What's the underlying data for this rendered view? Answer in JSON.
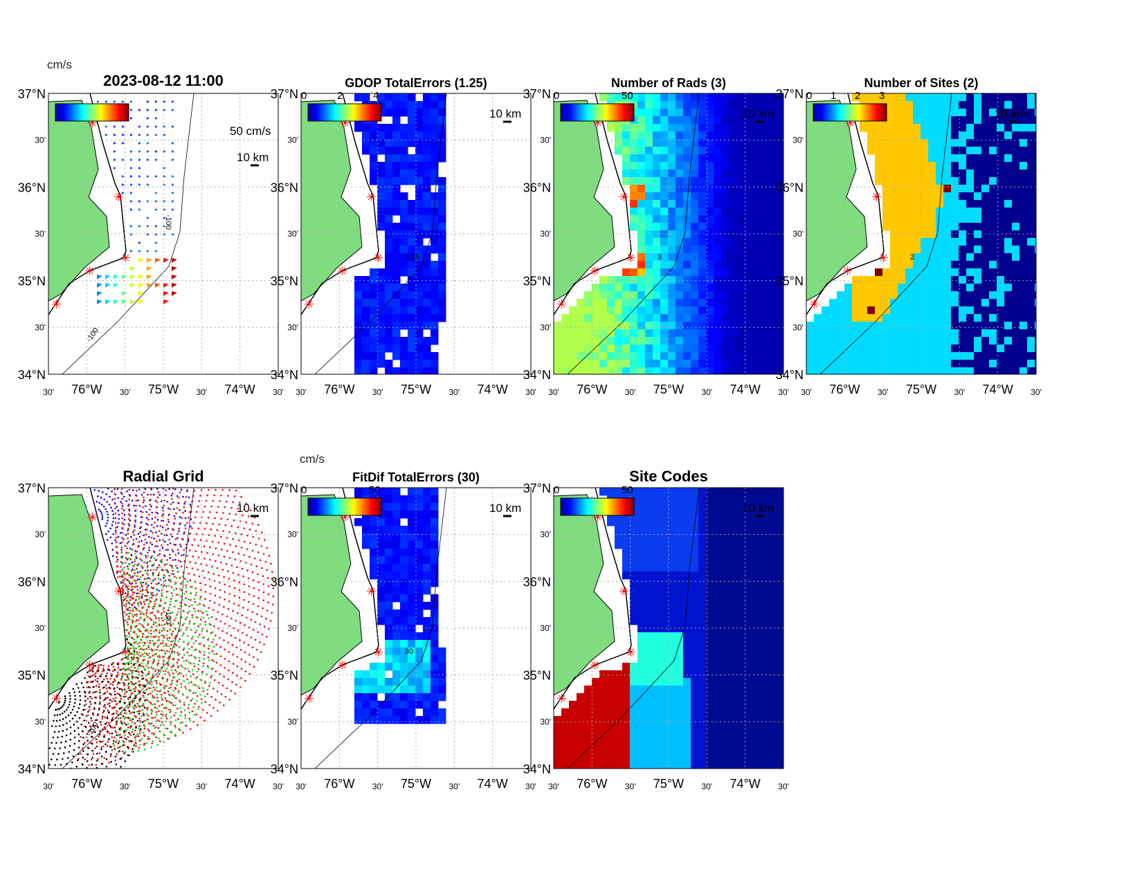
{
  "chart_data": {
    "type": "heatmap",
    "timestamp_title": "2023-08-12 11:00",
    "lat_ticks": [
      "37°N",
      "30'",
      "36°N",
      "30'",
      "35°N",
      "30'",
      "34°N"
    ],
    "lon_ticks": [
      "30'",
      "76°W",
      "30'",
      "75°W",
      "30'",
      "74°W",
      "30'"
    ],
    "lat_range": [
      34,
      37
    ],
    "lon_range": [
      -76.5,
      -73.5
    ],
    "contour_label": "-100",
    "panels": [
      {
        "id": "currents",
        "title": "2023-08-12 11:00",
        "cbar_unit": "cm/s",
        "cbar_ticks": [],
        "scale_label": "10 km",
        "arrow_scale_label": "50 cm/s",
        "field": "arrows"
      },
      {
        "id": "gdop",
        "title": "GDOP TotalErrors (1.25)",
        "cbar_unit": "",
        "cbar_ticks": [
          "0",
          "2",
          "4"
        ],
        "scale_label": "10 km",
        "contour_label": "1.25",
        "field": "gdop"
      },
      {
        "id": "nrads",
        "title": "Number of Rads (3)",
        "cbar_unit": "",
        "cbar_ticks": [
          "0",
          "50"
        ],
        "scale_label": "10 km",
        "contour_label": "3",
        "field": "nrads"
      },
      {
        "id": "nsites",
        "title": "Number of Sites (2)",
        "cbar_unit": "",
        "cbar_ticks": [
          "0",
          "1",
          "2",
          "3"
        ],
        "scale_label": "10 km",
        "contour_label": "2",
        "field": "nsites"
      },
      {
        "id": "radgrid",
        "title": "Radial Grid",
        "cbar_unit": "",
        "cbar_ticks": [],
        "scale_label": "10 km",
        "field": "radgrid"
      },
      {
        "id": "fitdif",
        "title": "FitDif TotalErrors (30)",
        "cbar_unit": "cm/s",
        "cbar_ticks": [
          "0",
          "50"
        ],
        "scale_label": "10 km",
        "contour_label": "30",
        "field": "fitdif"
      },
      {
        "id": "sitecodes",
        "title": "Site Codes",
        "cbar_unit": "",
        "cbar_ticks": [
          "0",
          "50"
        ],
        "scale_label": "10 km",
        "field": "sitecodes"
      }
    ],
    "colors": {
      "land": "#7fdc7f",
      "site_marker": "#ff0000"
    }
  }
}
